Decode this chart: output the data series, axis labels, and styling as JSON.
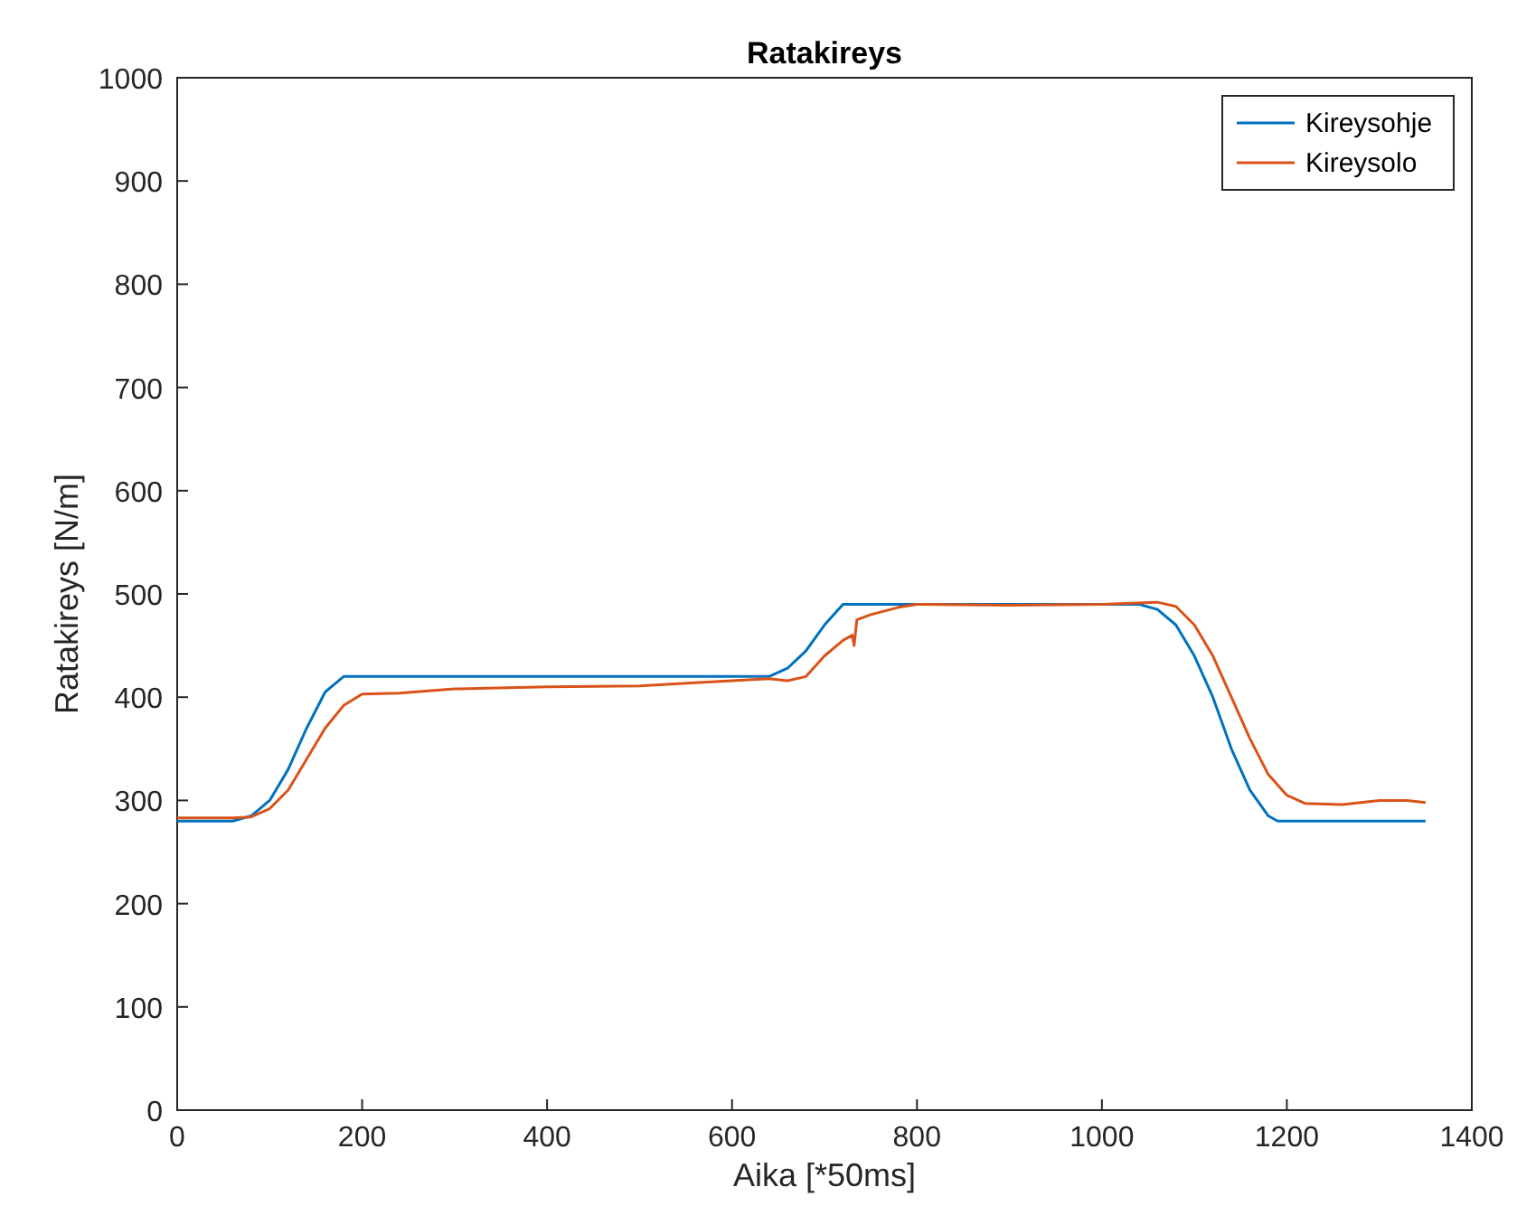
{
  "chart_data": {
    "type": "line",
    "title": "Ratakireys",
    "xlabel": "Aika [*50ms]",
    "ylabel": "Ratakireys [N/m]",
    "xlim": [
      0,
      1400
    ],
    "xticks": [
      0,
      200,
      400,
      600,
      800,
      1000,
      1200,
      1400
    ],
    "ylim": [
      0,
      1000
    ],
    "yticks": [
      0,
      100,
      200,
      300,
      400,
      500,
      600,
      700,
      800,
      900,
      1000
    ],
    "legend": "top right",
    "grid": false,
    "series": [
      {
        "name": "Kireysohje",
        "color": "#0072bd",
        "x": [
          0,
          60,
          80,
          100,
          120,
          140,
          160,
          180,
          640,
          660,
          680,
          700,
          720,
          1040,
          1060,
          1080,
          1100,
          1120,
          1140,
          1160,
          1180,
          1190,
          1350
        ],
        "values": [
          280,
          280,
          285,
          300,
          330,
          370,
          405,
          420,
          420,
          428,
          445,
          470,
          490,
          490,
          485,
          470,
          440,
          400,
          350,
          310,
          285,
          280,
          280
        ]
      },
      {
        "name": "Kireysolo",
        "color": "#d95319",
        "x": [
          0,
          60,
          80,
          100,
          120,
          140,
          160,
          180,
          200,
          240,
          300,
          400,
          500,
          560,
          640,
          660,
          680,
          700,
          720,
          730,
          732,
          735,
          750,
          780,
          800,
          900,
          1000,
          1060,
          1080,
          1100,
          1120,
          1140,
          1160,
          1180,
          1200,
          1220,
          1260,
          1300,
          1330,
          1350
        ],
        "values": [
          283,
          283,
          284,
          292,
          310,
          340,
          370,
          392,
          403,
          404,
          408,
          410,
          411,
          414,
          418,
          416,
          420,
          440,
          455,
          460,
          450,
          475,
          480,
          487,
          490,
          489,
          490,
          492,
          488,
          470,
          440,
          400,
          360,
          325,
          305,
          297,
          296,
          300,
          300,
          298
        ]
      }
    ]
  }
}
